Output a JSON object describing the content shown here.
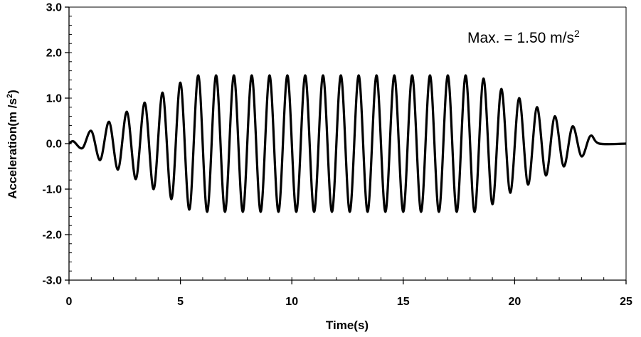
{
  "chart_data": {
    "type": "line",
    "xlabel": "Time(s)",
    "ylabel": {
      "main": "Acceleration(m /s",
      "sup": "2",
      "tail": ")"
    },
    "xlim": [
      0,
      25
    ],
    "ylim": [
      -3.0,
      3.0
    ],
    "x_ticks": [
      "0",
      "5",
      "10",
      "15",
      "20",
      "25"
    ],
    "y_ticks": [
      "3.0",
      "2.0",
      "1.0",
      "0.0",
      "-1.0",
      "-2.0",
      "-3.0"
    ],
    "grid": false,
    "line_color": "#000000",
    "annotation": {
      "text": "Max. = 1.50 m/s",
      "sup": "2"
    },
    "series": [
      {
        "signal": "sinusoid",
        "amplitude": 1.5,
        "frequency_hz": 1.25,
        "envelope": {
          "ramp_up": [
            0,
            5.8
          ],
          "constant": [
            5.8,
            18.4
          ],
          "ramp_down": [
            18.4,
            23.8
          ]
        },
        "duration": 25,
        "x": [
          0,
          0.2,
          0.6,
          1.0,
          1.4,
          1.8,
          2.2,
          2.6,
          3.0,
          3.4,
          3.8,
          4.2,
          4.6,
          5.0,
          5.4,
          5.8,
          6.2,
          6.6,
          7.0,
          7.4,
          7.8,
          8.2,
          8.6,
          9.0,
          9.4,
          9.8,
          10.2,
          10.6,
          11.0,
          11.4,
          11.8,
          12.2,
          12.6,
          13.0,
          13.4,
          13.8,
          14.2,
          14.6,
          15.0,
          15.4,
          15.8,
          16.2,
          16.6,
          17.0,
          17.4,
          17.8,
          18.2,
          18.6,
          19.0,
          19.4,
          19.8,
          20.2,
          20.6,
          21.0,
          21.4,
          21.8,
          22.2,
          22.6,
          23.0,
          23.4,
          23.8,
          25.0
        ],
        "y": [
          0,
          0.05,
          -0.1,
          0.28,
          -0.36,
          0.48,
          -0.57,
          0.7,
          -0.78,
          0.9,
          -1.0,
          1.12,
          -1.22,
          1.34,
          -1.45,
          1.5,
          -1.5,
          1.5,
          -1.5,
          1.5,
          -1.5,
          1.5,
          -1.5,
          1.5,
          -1.5,
          1.5,
          -1.5,
          1.5,
          -1.5,
          1.5,
          -1.5,
          1.5,
          -1.5,
          1.5,
          -1.5,
          1.5,
          -1.5,
          1.5,
          -1.5,
          1.5,
          -1.5,
          1.5,
          -1.5,
          1.5,
          -1.5,
          1.5,
          -1.5,
          1.43,
          -1.33,
          1.2,
          -1.08,
          1.0,
          -0.9,
          0.8,
          -0.7,
          0.6,
          -0.5,
          0.38,
          -0.28,
          0.17,
          0,
          0
        ]
      }
    ]
  }
}
